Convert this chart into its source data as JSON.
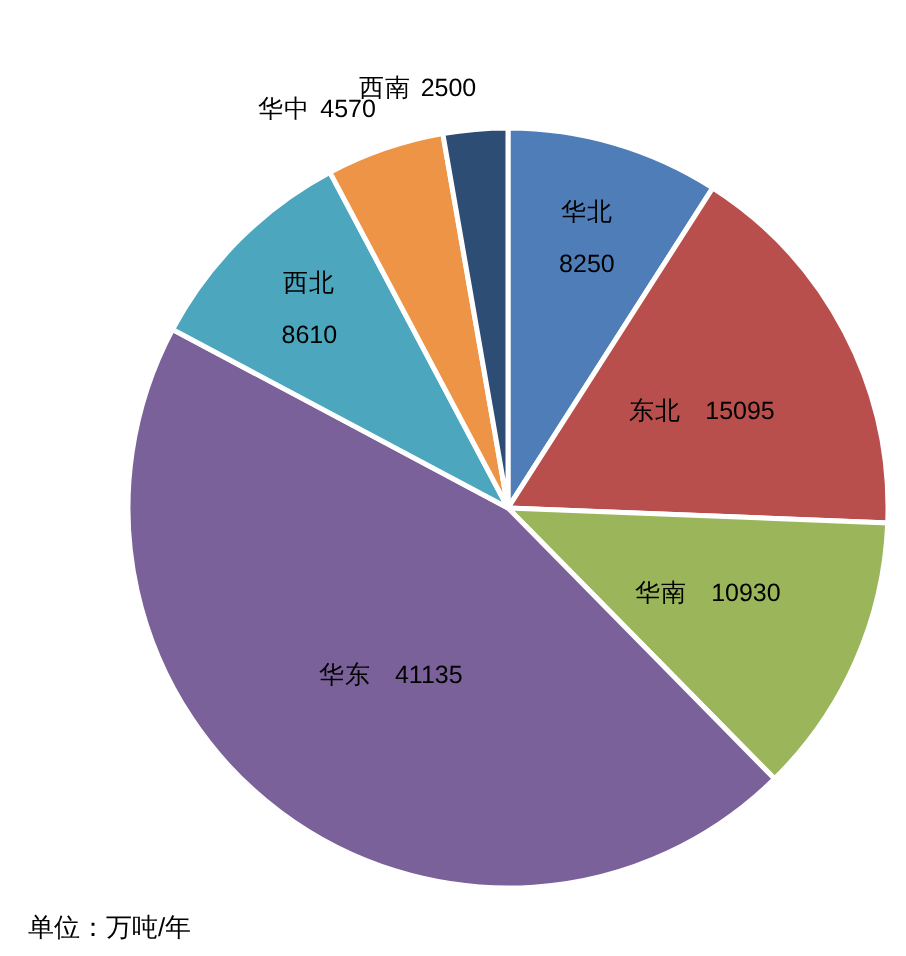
{
  "chart_data": {
    "type": "pie",
    "categories": [
      "华北",
      "东北",
      "华南",
      "华东",
      "西北",
      "华中",
      "西南"
    ],
    "values": [
      8250,
      15095,
      10930,
      41135,
      8610,
      4570,
      2500
    ],
    "colors": [
      "#4f7db8",
      "#b94f4d",
      "#9bb55a",
      "#7b6199",
      "#4ca6bd",
      "#ee9446",
      "#2e4d74"
    ],
    "data_labels": true,
    "annotations": [
      "单位：万吨/年"
    ]
  }
}
